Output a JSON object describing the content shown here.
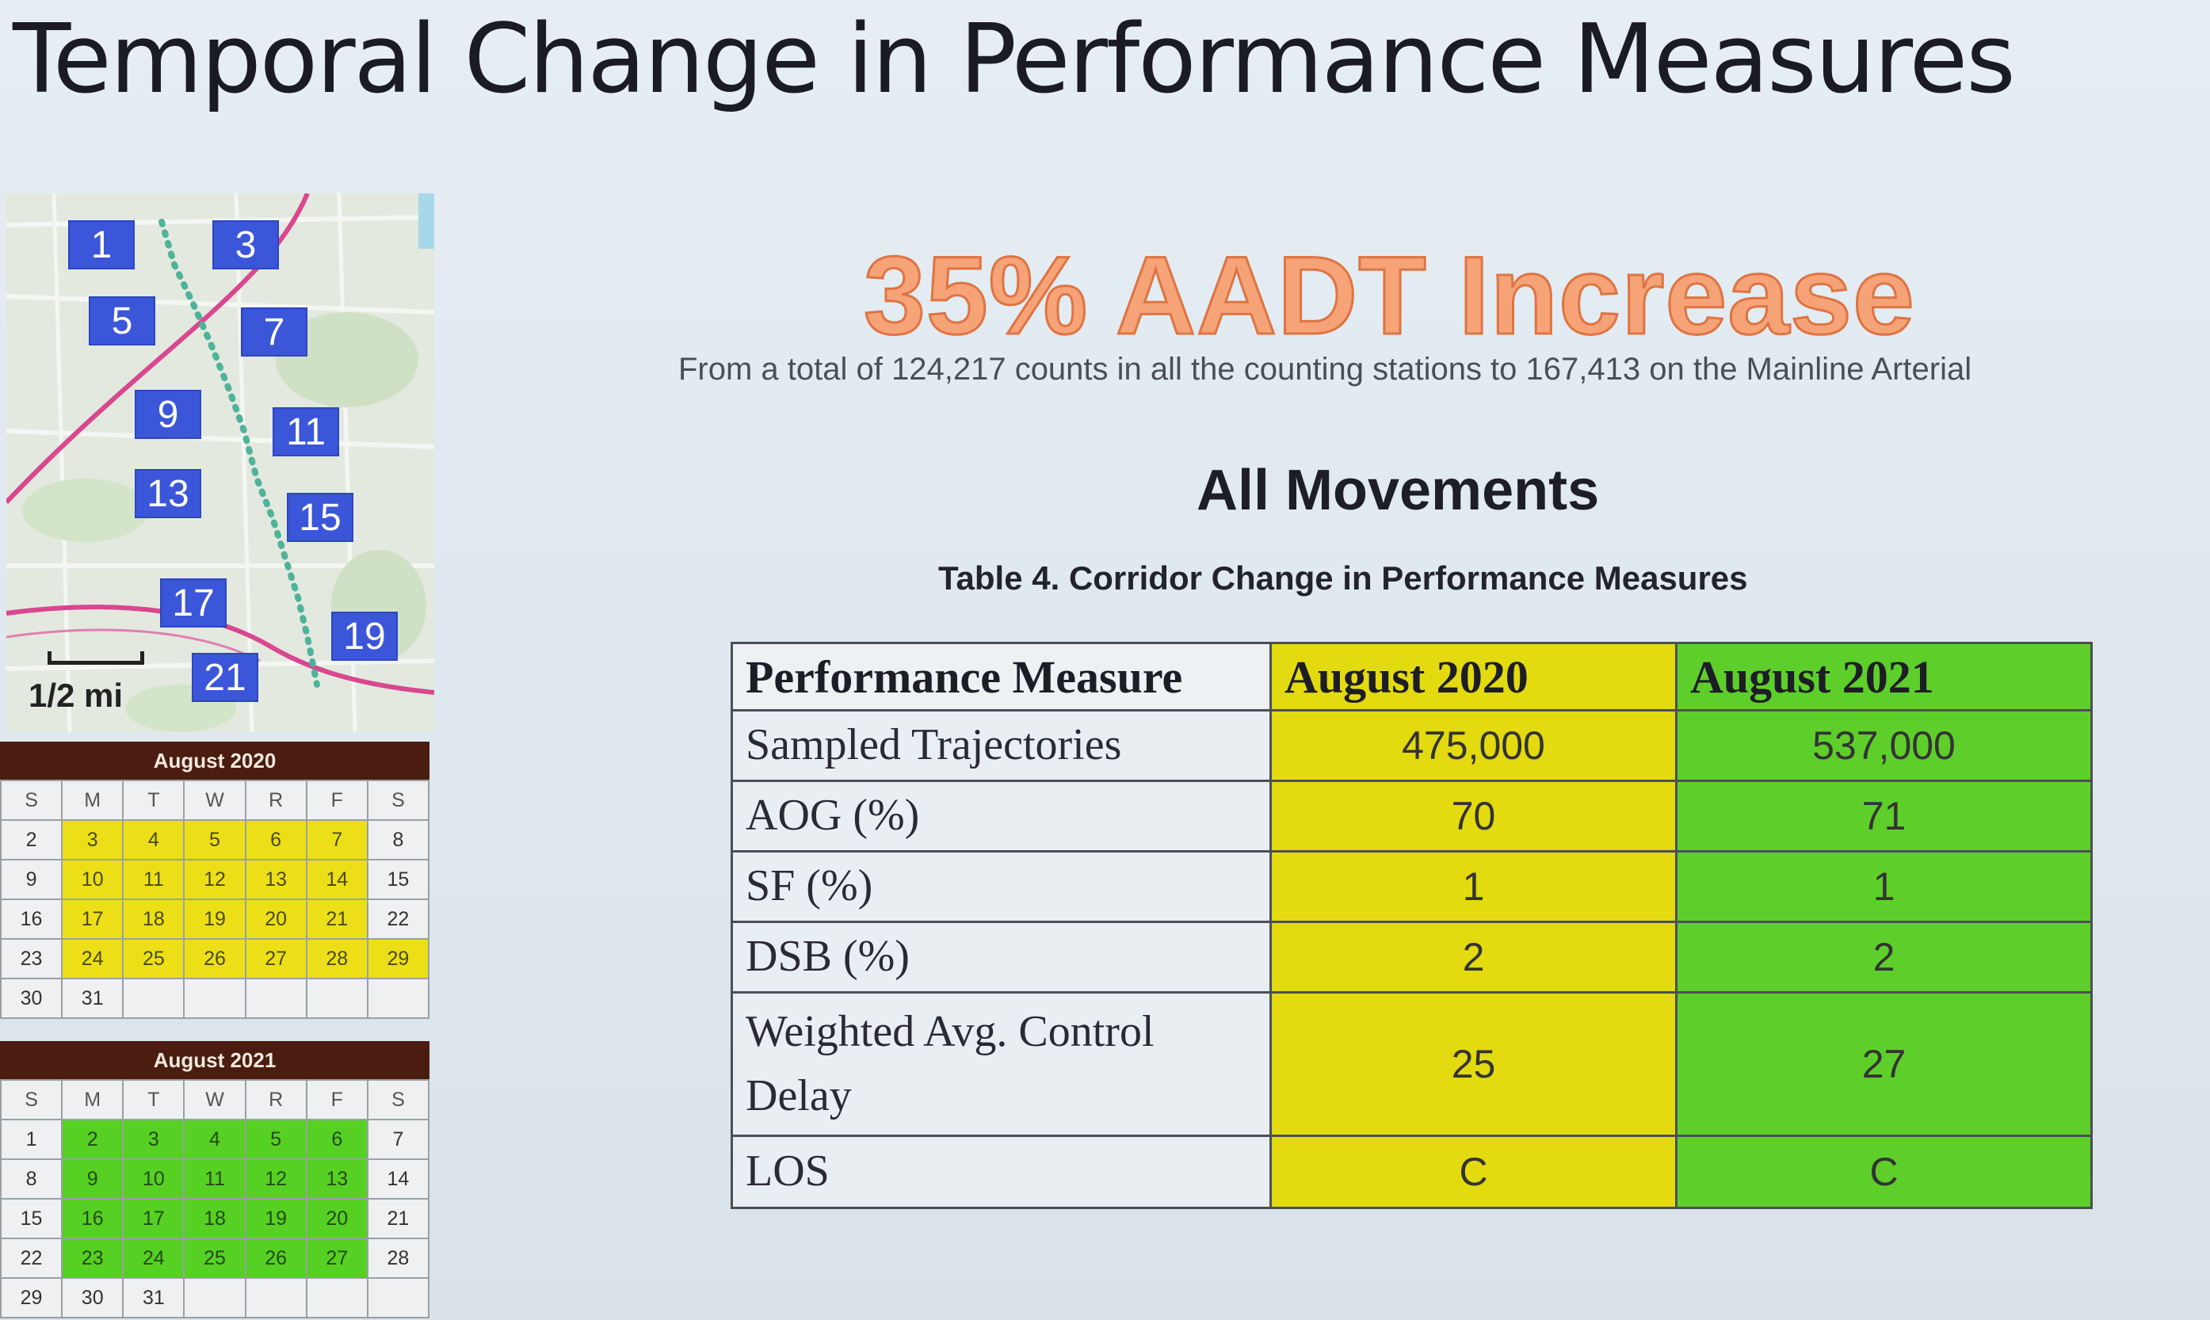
{
  "title": "Temporal Change in Performance Measures",
  "map": {
    "stations": [
      "1",
      "3",
      "5",
      "7",
      "9",
      "11",
      "13",
      "15",
      "17",
      "19",
      "21"
    ],
    "scale_label": "1/2 mi"
  },
  "calendars": [
    {
      "title": "August 2020",
      "days_header": [
        "S",
        "M",
        "T",
        "W",
        "R",
        "F",
        "S"
      ],
      "highlight": "yellow",
      "weeks": [
        [
          "2",
          "3",
          "4",
          "5",
          "6",
          "7",
          "8"
        ],
        [
          "9",
          "10",
          "11",
          "12",
          "13",
          "14",
          "15"
        ],
        [
          "16",
          "17",
          "18",
          "19",
          "20",
          "21",
          "22"
        ],
        [
          "23",
          "24",
          "25",
          "26",
          "27",
          "28",
          "29"
        ],
        [
          "30",
          "31",
          "",
          "",
          "",
          "",
          ""
        ]
      ]
    },
    {
      "title": "August 2021",
      "days_header": [
        "S",
        "M",
        "T",
        "W",
        "R",
        "F",
        "S"
      ],
      "highlight": "green",
      "weeks": [
        [
          "1",
          "2",
          "3",
          "4",
          "5",
          "6",
          "7"
        ],
        [
          "8",
          "9",
          "10",
          "11",
          "12",
          "13",
          "14"
        ],
        [
          "15",
          "16",
          "17",
          "18",
          "19",
          "20",
          "21"
        ],
        [
          "22",
          "23",
          "24",
          "25",
          "26",
          "27",
          "28"
        ],
        [
          "29",
          "30",
          "31",
          "",
          "",
          "",
          ""
        ]
      ]
    }
  ],
  "headline": "35% AADT Increase",
  "subline": "From a total of 124,217 counts in all the counting stations to 167,413 on the Mainline Arterial",
  "section_title": "All Movements",
  "table_caption": "Table 4. Corridor Change in Performance Measures",
  "table": {
    "headers": [
      "Performance Measure",
      "August 2020",
      "August 2021"
    ],
    "rows": [
      [
        "Sampled Trajectories",
        "475,000",
        "537,000"
      ],
      [
        "AOG (%)",
        "70",
        "71"
      ],
      [
        "SF (%)",
        "1",
        "1"
      ],
      [
        "DSB (%)",
        "2",
        "2"
      ],
      [
        "Weighted Avg. Control Delay",
        "25",
        "27"
      ],
      [
        "LOS",
        "C",
        "C"
      ]
    ]
  },
  "colors": {
    "august_2020": "#e3da10",
    "august_2021": "#5ecf2a",
    "headline": "#f6a377",
    "calendar_header": "#4a1d10"
  }
}
